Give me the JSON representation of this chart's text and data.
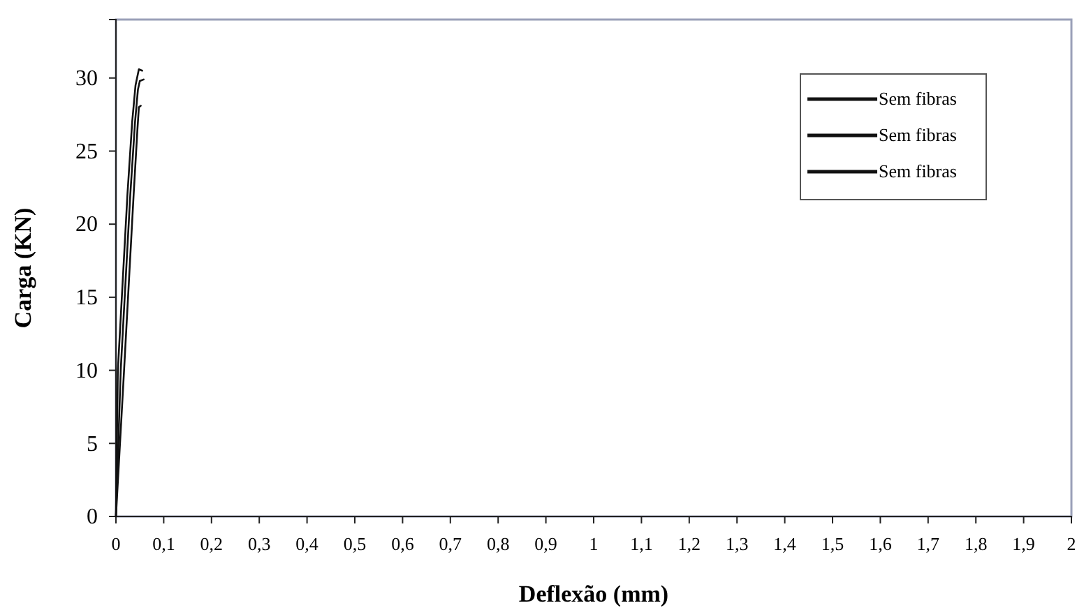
{
  "chart_data": {
    "type": "line",
    "xlabel": "Deflexão (mm)",
    "ylabel": "Carga (KN)",
    "xlim": [
      0,
      2
    ],
    "xticks": [
      0,
      {
        "value": 0.1,
        "label": "0,1"
      },
      {
        "value": 0.2,
        "label": "0,2"
      },
      {
        "value": 0.3,
        "label": "0,3"
      },
      {
        "value": 0.4,
        "label": "0,4"
      },
      {
        "value": 0.5,
        "label": "0,5"
      },
      {
        "value": 0.6,
        "label": "0,6"
      },
      {
        "value": 0.7,
        "label": "0,7"
      },
      {
        "value": 0.8,
        "label": "0,8"
      },
      {
        "value": 0.9,
        "label": "0,9"
      },
      1,
      {
        "value": 1.1,
        "label": "1,1"
      },
      {
        "value": 1.2,
        "label": "1,2"
      },
      {
        "value": 1.3,
        "label": "1,3"
      },
      {
        "value": 1.4,
        "label": "1,4"
      },
      {
        "value": 1.5,
        "label": "1,5"
      },
      {
        "value": 1.6,
        "label": "1,6"
      },
      {
        "value": 1.7,
        "label": "1,7"
      },
      {
        "value": 1.8,
        "label": "1,8"
      },
      {
        "value": 1.9,
        "label": "1,9"
      },
      2
    ],
    "ylim": [
      0,
      34
    ],
    "yticks": [
      0,
      5,
      10,
      15,
      20,
      25,
      30
    ],
    "legend": "top right",
    "grid": false,
    "marker": "none",
    "line_style": "solid",
    "series": [
      {
        "name": "Sem fibras",
        "color": "#111111",
        "x": [
          0,
          0.004,
          0.014,
          0.024,
          0.034,
          0.041,
          0.048,
          0.055
        ],
        "values": [
          0,
          10,
          16,
          22,
          27,
          29.5,
          30.6,
          30.5
        ]
      },
      {
        "name": "Sem fibras",
        "color": "#111111",
        "x": [
          0,
          0.01,
          0.02,
          0.03,
          0.04,
          0.046,
          0.05,
          0.058
        ],
        "values": [
          0,
          10,
          16,
          22,
          27,
          29.2,
          29.8,
          29.9
        ]
      },
      {
        "name": "Sem fibras",
        "color": "#111111",
        "x": [
          0,
          0.017,
          0.027,
          0.037,
          0.045,
          0.048,
          0.052
        ],
        "values": [
          0,
          10,
          16,
          22,
          26.5,
          28,
          28.1
        ]
      }
    ]
  }
}
